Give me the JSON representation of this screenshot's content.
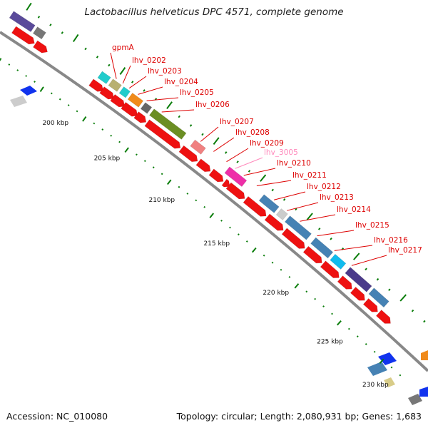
{
  "title": "Lactobacillus helveticus DPC 4571, complete genome",
  "footer": {
    "accession": "Accession: NC_010080",
    "summary": "Topology: circular; Length: 2,080,931 bp; Genes: 1,683"
  },
  "colors": {
    "gene_label": "#dd0000",
    "highlight_label": "#ff88bb",
    "backbone": "#888888",
    "tick": "#0a7d0a"
  },
  "gene_labels": [
    {
      "text": "gpmA",
      "color": "#dd0000"
    },
    {
      "text": "lhv_0202",
      "color": "#dd0000"
    },
    {
      "text": "lhv_0203",
      "color": "#dd0000"
    },
    {
      "text": "lhv_0204",
      "color": "#dd0000"
    },
    {
      "text": "lhv_0205",
      "color": "#dd0000"
    },
    {
      "text": "lhv_0206",
      "color": "#dd0000"
    },
    {
      "text": "lhv_0207",
      "color": "#dd0000"
    },
    {
      "text": "lhv_0208",
      "color": "#dd0000"
    },
    {
      "text": "lhv_0209",
      "color": "#dd0000"
    },
    {
      "text": "lhv_3005",
      "color": "#ff88bb"
    },
    {
      "text": "lhv_0210",
      "color": "#dd0000"
    },
    {
      "text": "lhv_0211",
      "color": "#dd0000"
    },
    {
      "text": "lhv_0212",
      "color": "#dd0000"
    },
    {
      "text": "lhv_0213",
      "color": "#dd0000"
    },
    {
      "text": "lhv_0214",
      "color": "#dd0000"
    },
    {
      "text": "lhv_0215",
      "color": "#dd0000"
    },
    {
      "text": "lhv_0216",
      "color": "#dd0000"
    },
    {
      "text": "lhv_0217",
      "color": "#dd0000"
    }
  ],
  "kbp_labels": [
    "200 kbp",
    "205 kbp",
    "210 kbp",
    "215 kbp",
    "220 kbp",
    "225 kbp",
    "230 kbp"
  ]
}
